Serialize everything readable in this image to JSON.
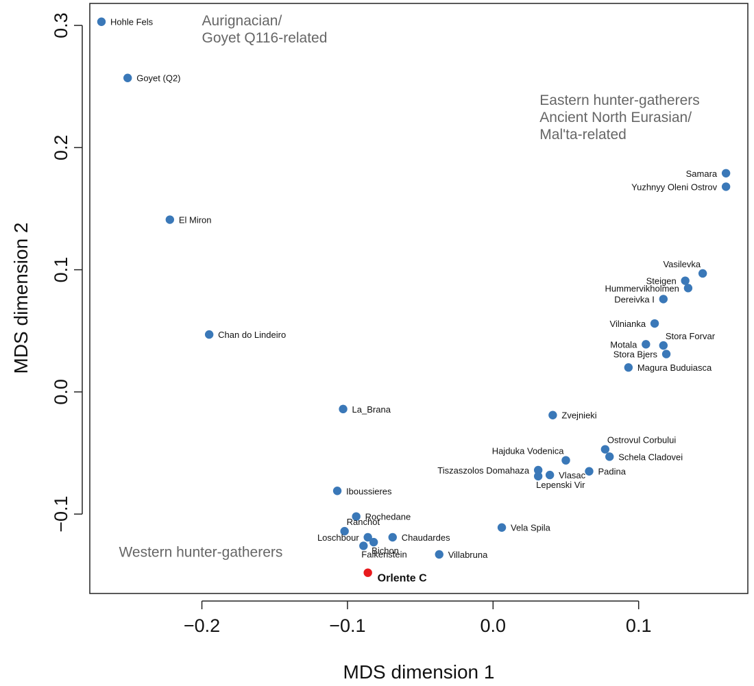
{
  "chart_data": {
    "type": "scatter",
    "xlabel": "MDS dimension 1",
    "ylabel": "MDS dimension 2",
    "xlim": [
      -0.277,
      0.175
    ],
    "ylim": [
      -0.165,
      0.318
    ],
    "x_ticks": [
      {
        "value": -0.2,
        "label": "−0.2"
      },
      {
        "value": -0.1,
        "label": "−0.1"
      },
      {
        "value": 0.0,
        "label": "0.0"
      },
      {
        "value": 0.1,
        "label": "0.1"
      }
    ],
    "y_ticks": [
      {
        "value": -0.1,
        "label": "−0.1"
      },
      {
        "value": 0.0,
        "label": "0.0"
      },
      {
        "value": 0.1,
        "label": "0.1"
      },
      {
        "value": 0.2,
        "label": "0.2"
      },
      {
        "value": 0.3,
        "label": "0.3"
      }
    ],
    "point_color": "#3a78b8",
    "highlight_color": "#e8191c",
    "group_label_color": "#666666",
    "points": [
      {
        "name": "Hohle Fels",
        "x": -0.269,
        "y": 0.303,
        "label_side": "right"
      },
      {
        "name": "Goyet (Q2)",
        "x": -0.251,
        "y": 0.257,
        "label_side": "right"
      },
      {
        "name": "El Miron",
        "x": -0.222,
        "y": 0.141,
        "label_side": "right"
      },
      {
        "name": "Chan do Lindeiro",
        "x": -0.195,
        "y": 0.047,
        "label_side": "right"
      },
      {
        "name": "La_Brana",
        "x": -0.103,
        "y": -0.014,
        "label_side": "right"
      },
      {
        "name": "Iboussieres",
        "x": -0.107,
        "y": -0.081,
        "label_side": "right"
      },
      {
        "name": "Rochedane",
        "x": -0.094,
        "y": -0.102,
        "label_side": "right"
      },
      {
        "name": "Ranchot",
        "x": -0.102,
        "y": -0.114,
        "label_side": "above-right"
      },
      {
        "name": "Loschbour",
        "x": -0.086,
        "y": -0.119,
        "label_side": "left"
      },
      {
        "name": "Chaudardes",
        "x": -0.069,
        "y": -0.119,
        "label_side": "right"
      },
      {
        "name": "Bichon",
        "x": -0.082,
        "y": -0.123,
        "label_side": "below-right"
      },
      {
        "name": "Falkenstein",
        "x": -0.089,
        "y": -0.126,
        "label_side": "below-right"
      },
      {
        "name": "Villabruna",
        "x": -0.037,
        "y": -0.133,
        "label_side": "right"
      },
      {
        "name": "Orlente C",
        "x": -0.086,
        "y": -0.148,
        "label_side": "right",
        "highlight": true
      },
      {
        "name": "Vela Spila",
        "x": 0.006,
        "y": -0.111,
        "label_side": "right"
      },
      {
        "name": "Zvejnieki",
        "x": 0.041,
        "y": -0.019,
        "label_side": "right"
      },
      {
        "name": "Ostrovul Corbului",
        "x": 0.077,
        "y": -0.047,
        "label_side": "above-right"
      },
      {
        "name": "Schela Cladovei",
        "x": 0.08,
        "y": -0.053,
        "label_side": "right"
      },
      {
        "name": "Hajduka Vodenica",
        "x": 0.05,
        "y": -0.056,
        "label_side": "above-left"
      },
      {
        "name": "Padina",
        "x": 0.066,
        "y": -0.065,
        "label_side": "right"
      },
      {
        "name": "Tiszaszolos Domahaza",
        "x": 0.031,
        "y": -0.064,
        "label_side": "left"
      },
      {
        "name": "Vlasac",
        "x": 0.039,
        "y": -0.068,
        "label_side": "right"
      },
      {
        "name": "Lepenski Vir",
        "x": 0.031,
        "y": -0.069,
        "label_side": "below-right"
      },
      {
        "name": "Samara",
        "x": 0.16,
        "y": 0.179,
        "label_side": "left"
      },
      {
        "name": "Yuzhnyy Oleni Ostrov",
        "x": 0.16,
        "y": 0.168,
        "label_side": "left"
      },
      {
        "name": "Vasilevka",
        "x": 0.144,
        "y": 0.097,
        "label_side": "above-left"
      },
      {
        "name": "Steigen",
        "x": 0.132,
        "y": 0.091,
        "label_side": "left"
      },
      {
        "name": "Hummervikholmen",
        "x": 0.134,
        "y": 0.085,
        "label_side": "left"
      },
      {
        "name": "Dereivka I",
        "x": 0.117,
        "y": 0.076,
        "label_side": "left"
      },
      {
        "name": "Vilnianka",
        "x": 0.111,
        "y": 0.056,
        "label_side": "left"
      },
      {
        "name": "Stora Forvar",
        "x": 0.117,
        "y": 0.038,
        "label_side": "above-right"
      },
      {
        "name": "Motala",
        "x": 0.105,
        "y": 0.039,
        "label_side": "left"
      },
      {
        "name": "Stora Bjers",
        "x": 0.119,
        "y": 0.031,
        "label_side": "left"
      },
      {
        "name": "Magura Buduiasca",
        "x": 0.093,
        "y": 0.02,
        "label_side": "right"
      }
    ],
    "group_labels": [
      {
        "lines": [
          "Aurignacian/",
          "Goyet Q116-related"
        ],
        "x": -0.2,
        "y": 0.3
      },
      {
        "lines": [
          "Eastern hunter-gatherers",
          "Ancient North Eurasian/",
          "Mal'ta-related"
        ],
        "x": 0.032,
        "y": 0.235
      },
      {
        "lines": [
          "Western hunter-gatherers"
        ],
        "x": -0.257,
        "y": -0.135
      }
    ]
  }
}
